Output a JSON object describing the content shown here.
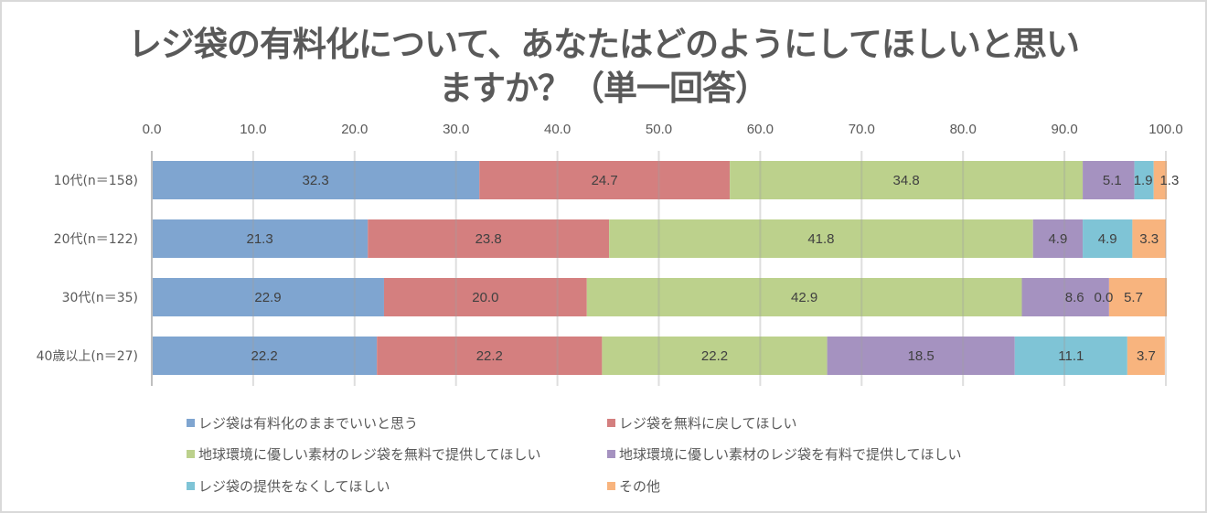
{
  "chart_data": {
    "type": "bar",
    "orientation": "horizontal",
    "stacked": true,
    "title_line1": "レジ袋の有料化について、あなたはどのようにしてほしいと思い",
    "title_line2": "ますか？（単一回答）",
    "xlim": [
      0,
      100
    ],
    "x_ticks": [
      "0.0",
      "10.0",
      "20.0",
      "30.0",
      "40.0",
      "50.0",
      "60.0",
      "70.0",
      "80.0",
      "90.0",
      "100.0"
    ],
    "grid": true,
    "legend_position": "bottom",
    "categories": [
      "10代(n＝158)",
      "20代(n＝122)",
      "30代(n＝35)",
      "40歳以上(n＝27)"
    ],
    "series": [
      {
        "name": "レジ袋は有料化のままでいいと思う",
        "color": "#7FA5D0",
        "values": [
          32.3,
          21.3,
          22.9,
          22.2
        ],
        "labels": [
          "32.3",
          "21.3",
          "22.9",
          "22.2"
        ]
      },
      {
        "name": "レジ袋を無料に戻してほしい",
        "color": "#D47F7F",
        "values": [
          24.7,
          23.8,
          20.0,
          22.2
        ],
        "labels": [
          "24.7",
          "23.8",
          "20.0",
          "22.2"
        ]
      },
      {
        "name": "地球環境に優しい素材のレジ袋を無料で提供してほしい",
        "color": "#BCD18C",
        "values": [
          34.8,
          41.8,
          42.9,
          22.2
        ],
        "labels": [
          "34.8",
          "41.8",
          "42.9",
          "22.2"
        ]
      },
      {
        "name": "地球環境に優しい素材のレジ袋を有料で提供してほしい",
        "color": "#A592C0",
        "values": [
          5.1,
          4.9,
          8.6,
          18.5
        ],
        "labels": [
          "5.1",
          "4.9",
          "8.6",
          "18.5"
        ]
      },
      {
        "name": "レジ袋の提供をなくしてほしい",
        "color": "#7FC4D6",
        "values": [
          1.9,
          4.9,
          0.0,
          11.1
        ],
        "labels": [
          "1.9",
          "4.9",
          "0.0",
          "11.1"
        ]
      },
      {
        "name": "その他",
        "color": "#F8B47E",
        "values": [
          1.3,
          3.3,
          5.7,
          3.7
        ],
        "labels": [
          "1.3",
          "3.3",
          "5.7",
          "3.7"
        ]
      }
    ]
  }
}
